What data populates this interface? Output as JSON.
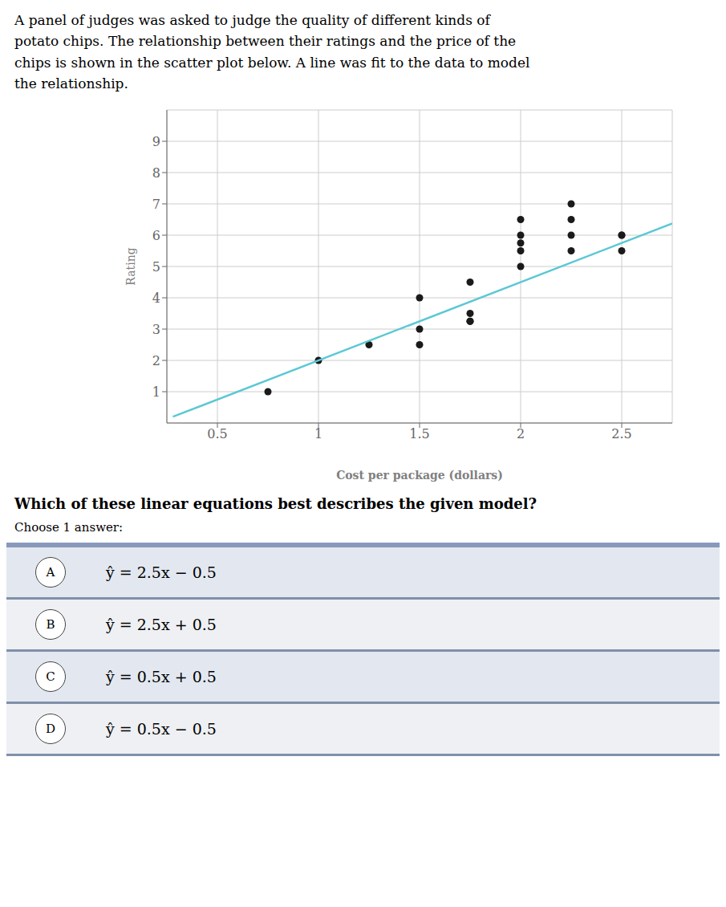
{
  "chart_data": {
    "type": "scatter",
    "title": "A panel of judges was asked to judge the quality of different kinds of\npotato chips. The relationship between their ratings and the price of the\nchips is shown in the scatter plot below. A line was fit to the data to model\nthe relationship.",
    "xlabel": "Cost per package (dollars)",
    "ylabel": "Rating",
    "xlim": [
      0.25,
      2.75
    ],
    "ylim": [
      0,
      10
    ],
    "xticks": [
      0.5,
      1,
      1.5,
      2,
      2.5
    ],
    "yticks": [
      1,
      2,
      3,
      4,
      5,
      6,
      7,
      8,
      9
    ],
    "grid": true,
    "series": [
      {
        "type": "scatter",
        "color": "#1a1a1a",
        "x": [
          0.75,
          1.0,
          1.25,
          1.5,
          1.5,
          1.5,
          1.75,
          1.75,
          1.75,
          1.75,
          2.0,
          2.0,
          2.0,
          2.0,
          2.0,
          2.25,
          2.25,
          2.25,
          2.25,
          2.5,
          2.5,
          2.5
        ],
        "values": [
          1.0,
          2.0,
          2.5,
          3.0,
          4.0,
          2.5,
          3.25,
          3.25,
          3.5,
          4.5,
          5.0,
          5.5,
          5.75,
          6.0,
          6.5,
          5.5,
          6.0,
          6.5,
          7.0,
          5.5,
          6.0,
          6.0
        ]
      },
      {
        "type": "line",
        "color": "#5BC8D4",
        "x": [
          0.28,
          2.75
        ],
        "values": [
          0.2,
          6.375
        ]
      }
    ],
    "annotations": [
      "Which of these linear equations best describes the given model?",
      "Choose 1 answer:",
      "A",
      "ŷ = 2.5x − 0.5",
      "B",
      "ŷ = 2.5x + 0.5",
      "C",
      "ŷ = 0.5x + 0.5",
      "D",
      "ŷ = 0.5x − 0.5"
    ]
  }
}
